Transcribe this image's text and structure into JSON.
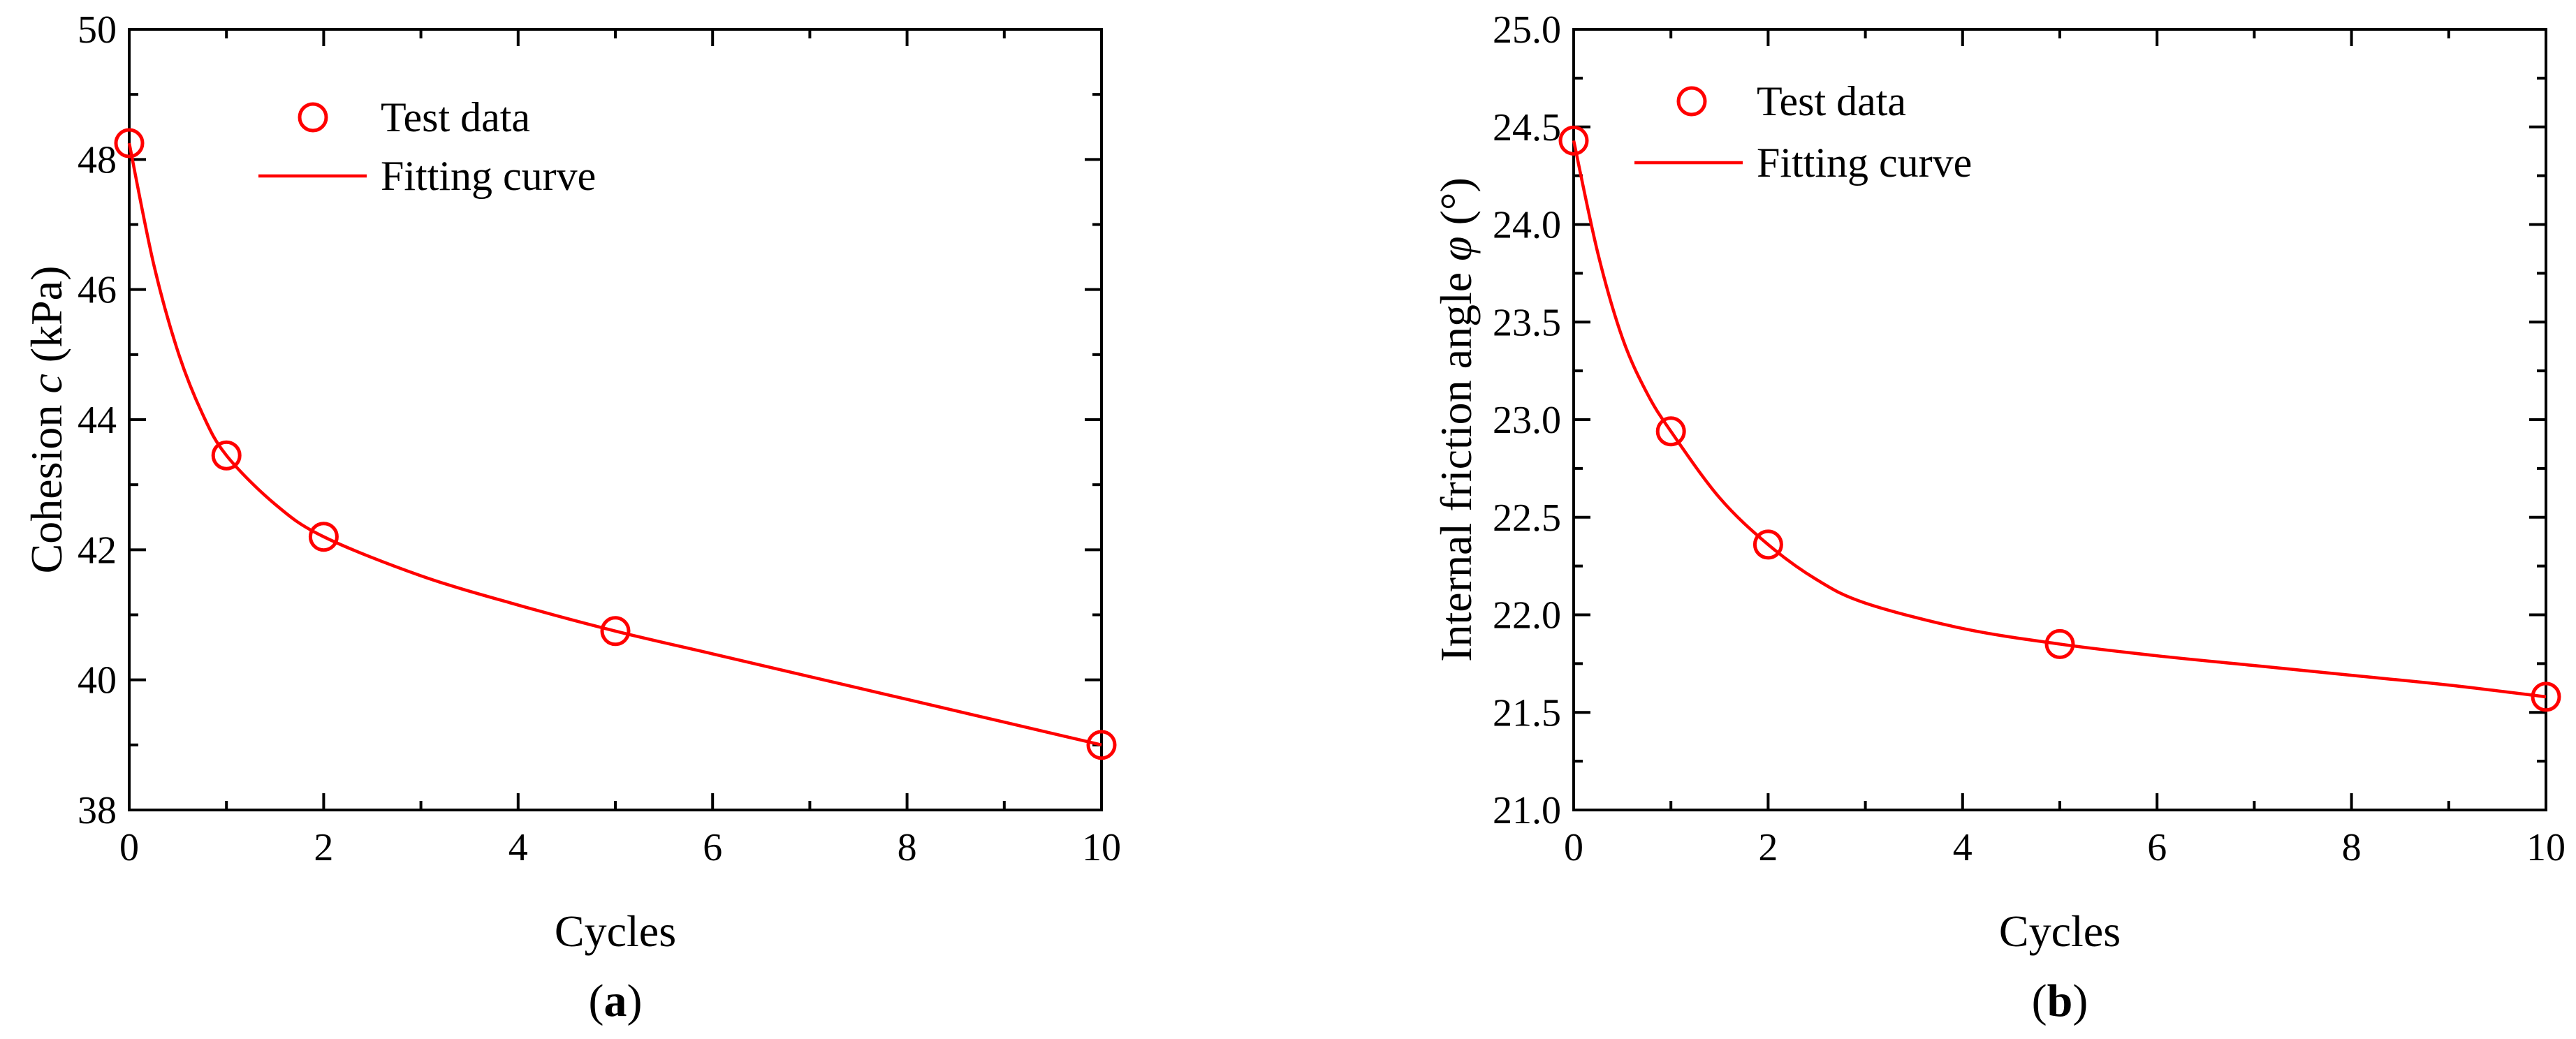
{
  "colors": {
    "series": "#ff0000",
    "axis": "#000000"
  },
  "chart_data": [
    {
      "type": "line",
      "panel_label": "a",
      "xlabel": "Cycles",
      "ylabel_prefix": "Cohesion ",
      "ylabel_symbol": "c",
      "ylabel_suffix": " (kPa)",
      "xlim": [
        0,
        10
      ],
      "ylim": [
        38,
        50
      ],
      "xticks": [
        "0",
        "2",
        "4",
        "6",
        "8",
        "10"
      ],
      "yticks": [
        "38",
        "40",
        "42",
        "44",
        "46",
        "48",
        "50"
      ],
      "legend_position": "top-left",
      "series": [
        {
          "name": "Test data",
          "style": "markers",
          "x": [
            0,
            1,
            2,
            5,
            10
          ],
          "y": [
            48.25,
            43.45,
            42.2,
            40.75,
            39.0
          ]
        },
        {
          "name": "Fitting curve",
          "style": "line",
          "x": [
            0,
            0.25,
            0.5,
            0.75,
            1,
            1.5,
            2,
            3,
            4,
            5,
            6,
            7,
            8,
            9,
            10
          ],
          "y": [
            48.25,
            46.4,
            45.05,
            44.1,
            43.45,
            42.7,
            42.2,
            41.6,
            41.15,
            40.75,
            40.4,
            40.05,
            39.7,
            39.35,
            39.0
          ]
        }
      ]
    },
    {
      "type": "line",
      "panel_label": "b",
      "xlabel": "Cycles",
      "ylabel_prefix": "Internal friction angle ",
      "ylabel_symbol": "φ",
      "ylabel_suffix": " (°)",
      "xlim": [
        0,
        10
      ],
      "ylim": [
        21.0,
        25.0
      ],
      "xticks": [
        "0",
        "2",
        "4",
        "6",
        "8",
        "10"
      ],
      "yticks": [
        "21.0",
        "21.5",
        "22.0",
        "22.5",
        "23.0",
        "23.5",
        "24.0",
        "24.5",
        "25.0"
      ],
      "legend_position": "top-left",
      "series": [
        {
          "name": "Test data",
          "style": "markers",
          "x": [
            0,
            1,
            2,
            5,
            10
          ],
          "y": [
            24.43,
            22.94,
            22.36,
            21.85,
            21.58
          ]
        },
        {
          "name": "Fitting curve",
          "style": "line",
          "x": [
            0,
            0.25,
            0.5,
            0.75,
            1,
            1.5,
            2,
            2.5,
            3,
            4,
            5,
            6,
            7,
            8,
            9,
            10
          ],
          "y": [
            24.43,
            23.85,
            23.42,
            23.14,
            22.94,
            22.6,
            22.36,
            22.18,
            22.06,
            21.93,
            21.85,
            21.79,
            21.74,
            21.69,
            21.64,
            21.58
          ]
        }
      ]
    }
  ]
}
